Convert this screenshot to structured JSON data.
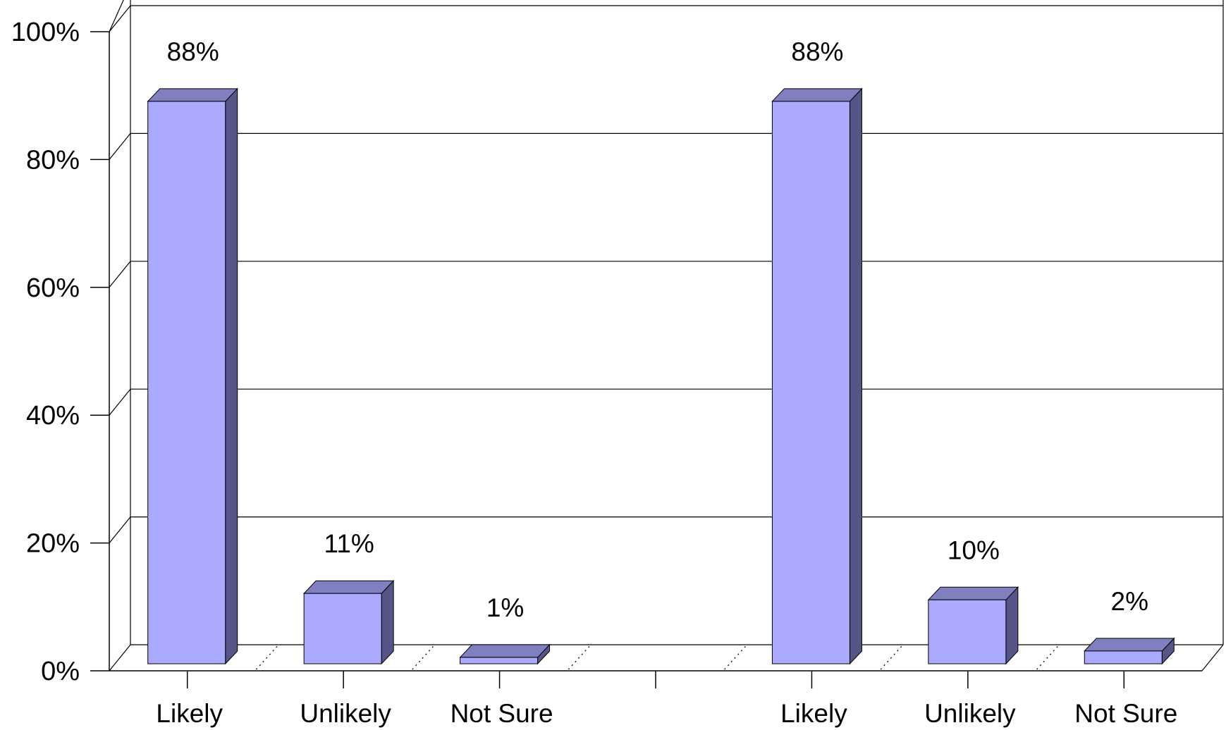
{
  "chart_data": {
    "type": "bar",
    "title": "",
    "xlabel": "",
    "ylabel": "",
    "ylim": [
      0,
      100
    ],
    "y_ticks": [
      "0%",
      "20%",
      "40%",
      "60%",
      "80%",
      "100%"
    ],
    "y_tick_values": [
      0,
      20,
      40,
      60,
      80,
      100
    ],
    "grid": true,
    "legend": "none",
    "style": "3d-column",
    "groups": [
      {
        "categories": [
          "Likely",
          "Unlikely",
          "Not Sure"
        ],
        "values": [
          88,
          11,
          1
        ],
        "labels": [
          "88%",
          "11%",
          "1%"
        ]
      },
      {
        "categories": [
          "Likely",
          "Unlikely",
          "Not Sure"
        ],
        "values": [
          88,
          10,
          2
        ],
        "labels": [
          "88%",
          "10%",
          "2%"
        ]
      }
    ],
    "colors": {
      "bar_front": "#aaaaff",
      "bar_top": "#8080c0",
      "bar_side": "#555588",
      "grid": "#000000",
      "axis": "#000000"
    }
  }
}
